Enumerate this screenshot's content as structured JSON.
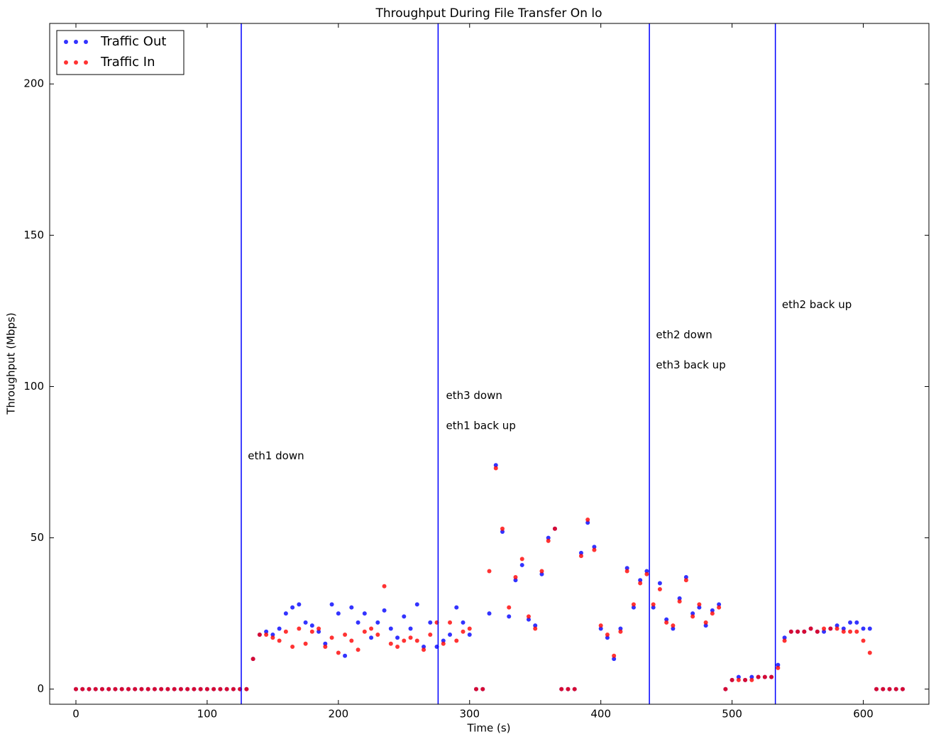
{
  "chart_data": {
    "type": "scatter",
    "title": "Throughput During File Transfer On lo",
    "x_label": "Time (s)",
    "y_label": "Throughput (Mbps)",
    "xlim": [
      -20,
      650
    ],
    "ylim": [
      -5,
      220
    ],
    "xticks": [
      0,
      100,
      200,
      300,
      400,
      500,
      600
    ],
    "yticks": [
      0,
      50,
      100,
      150,
      200
    ],
    "grid": false,
    "legend_position": "upper-left",
    "vlines": [
      126,
      276,
      437,
      533
    ],
    "vline_color": "#0000ff",
    "annotations": [
      {
        "text": "eth1 down",
        "x": 131,
        "y": 77
      },
      {
        "text": "eth3 down",
        "x": 282,
        "y": 97
      },
      {
        "text": "eth1 back up",
        "x": 282,
        "y": 87
      },
      {
        "text": "eth2 down",
        "x": 442,
        "y": 117
      },
      {
        "text": "eth3 back up",
        "x": 442,
        "y": 107
      },
      {
        "text": "eth2 back up",
        "x": 538,
        "y": 127
      }
    ],
    "x": [
      0,
      5,
      10,
      15,
      20,
      25,
      30,
      35,
      40,
      45,
      50,
      55,
      60,
      65,
      70,
      75,
      80,
      85,
      90,
      95,
      100,
      105,
      110,
      115,
      120,
      125,
      130,
      135,
      140,
      145,
      150,
      155,
      160,
      165,
      170,
      175,
      180,
      185,
      190,
      195,
      200,
      205,
      210,
      215,
      220,
      225,
      230,
      235,
      240,
      245,
      250,
      255,
      260,
      265,
      270,
      275,
      280,
      285,
      290,
      295,
      300,
      305,
      310,
      315,
      320,
      325,
      330,
      335,
      340,
      345,
      350,
      355,
      360,
      365,
      370,
      375,
      380,
      385,
      390,
      395,
      400,
      405,
      410,
      415,
      420,
      425,
      430,
      435,
      440,
      445,
      450,
      455,
      460,
      465,
      470,
      475,
      480,
      485,
      490,
      495,
      500,
      505,
      510,
      515,
      520,
      525,
      530,
      535,
      540,
      545,
      550,
      555,
      560,
      565,
      570,
      575,
      580,
      585,
      590,
      595,
      600,
      605,
      610,
      615,
      620,
      625,
      630
    ],
    "series": [
      {
        "name": "Traffic Out",
        "color": "#0000ff",
        "values": [
          0,
          0,
          0,
          0,
          0,
          0,
          0,
          0,
          0,
          0,
          0,
          0,
          0,
          0,
          0,
          0,
          0,
          0,
          0,
          0,
          0,
          0,
          0,
          0,
          0,
          0,
          0,
          10,
          18,
          19,
          18,
          20,
          25,
          27,
          28,
          22,
          21,
          19,
          15,
          28,
          25,
          11,
          27,
          22,
          25,
          17,
          22,
          26,
          20,
          17,
          24,
          20,
          28,
          14,
          22,
          14,
          16,
          18,
          27,
          22,
          18,
          0,
          0,
          25,
          74,
          52,
          24,
          36,
          41,
          23,
          21,
          38,
          50,
          53,
          0,
          0,
          0,
          45,
          55,
          47,
          20,
          17,
          10,
          20,
          40,
          27,
          36,
          39,
          27,
          35,
          23,
          20,
          30,
          37,
          25,
          27,
          21,
          26,
          28,
          0,
          3,
          4,
          3,
          4,
          4,
          4,
          4,
          8,
          17,
          19,
          19,
          19,
          20,
          19,
          19,
          20,
          21,
          20,
          22,
          22,
          20,
          20,
          0,
          0,
          0,
          0,
          0
        ]
      },
      {
        "name": "Traffic In",
        "color": "#ff0000",
        "values": [
          0,
          0,
          0,
          0,
          0,
          0,
          0,
          0,
          0,
          0,
          0,
          0,
          0,
          0,
          0,
          0,
          0,
          0,
          0,
          0,
          0,
          0,
          0,
          0,
          0,
          0,
          0,
          10,
          18,
          18,
          17,
          16,
          19,
          14,
          20,
          15,
          19,
          20,
          14,
          17,
          12,
          18,
          16,
          13,
          19,
          20,
          18,
          34,
          15,
          14,
          16,
          17,
          16,
          13,
          18,
          22,
          15,
          22,
          16,
          19,
          20,
          0,
          0,
          39,
          73,
          53,
          27,
          37,
          43,
          24,
          20,
          39,
          49,
          53,
          0,
          0,
          0,
          44,
          56,
          46,
          21,
          18,
          11,
          19,
          39,
          28,
          35,
          38,
          28,
          33,
          22,
          21,
          29,
          36,
          24,
          28,
          22,
          25,
          27,
          0,
          3,
          3,
          3,
          3,
          4,
          4,
          4,
          7,
          16,
          19,
          19,
          19,
          20,
          19,
          20,
          20,
          20,
          19,
          19,
          19,
          16,
          12,
          0,
          0,
          0,
          0,
          0
        ]
      }
    ]
  }
}
